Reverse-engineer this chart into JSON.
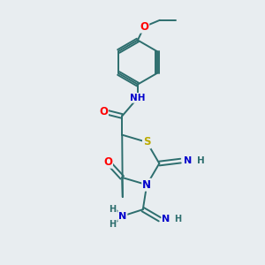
{
  "bg_color": "#e8edf0",
  "bond_color": "#2d6e6e",
  "atom_colors": {
    "O": "#ff0000",
    "N": "#0000cc",
    "S": "#bbaa00",
    "C": "#2d6e6e",
    "H": "#2d6e6e"
  }
}
